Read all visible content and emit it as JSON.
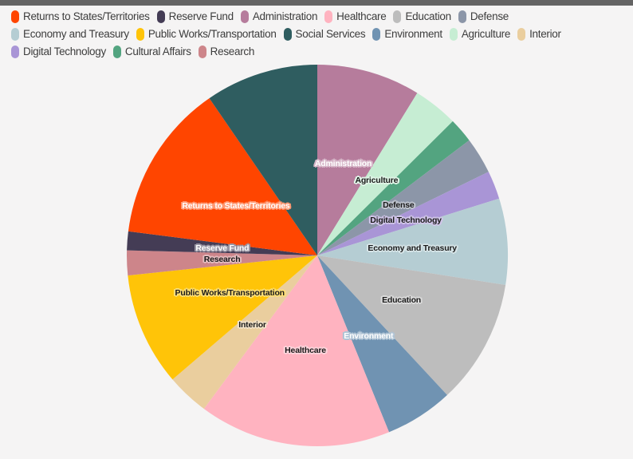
{
  "page": {
    "background": "#f5f4f4",
    "topbar_color": "#646464"
  },
  "chart_data": {
    "type": "pie",
    "title": "",
    "unit": "percent",
    "start_angle": 0,
    "direction": "clockwise",
    "legend_position": "top-left",
    "slices": [
      {
        "label": "Administration",
        "value": 8.8,
        "color": "#b67c9c",
        "pie_label": true,
        "label_color": "#ffffff"
      },
      {
        "label": "Agriculture",
        "value": 3.8,
        "color": "#c6edd3",
        "pie_label": true,
        "label_color": "#1b1b1b"
      },
      {
        "label": "Cultural Affairs",
        "value": 2.1,
        "color": "#53a480",
        "pie_label": false,
        "label_color": "#1b1b1b"
      },
      {
        "label": "Defense",
        "value": 3.1,
        "color": "#8c96a8",
        "pie_label": true,
        "label_color": "#1b1b1b"
      },
      {
        "label": "Digital Technology",
        "value": 2.4,
        "color": "#a995d6",
        "pie_label": true,
        "label_color": "#1b1b1b"
      },
      {
        "label": "Economy and Treasury",
        "value": 7.3,
        "color": "#b5cdd3",
        "pie_label": true,
        "label_color": "#1b1b1b"
      },
      {
        "label": "Education",
        "value": 10.6,
        "color": "#bdbdbd",
        "pie_label": true,
        "label_color": "#1b1b1b"
      },
      {
        "label": "Environment",
        "value": 5.8,
        "color": "#7093b2",
        "pie_label": true,
        "label_color": "#ffffff"
      },
      {
        "label": "Healthcare",
        "value": 16.3,
        "color": "#ffb3c0",
        "pie_label": true,
        "label_color": "#1b1b1b"
      },
      {
        "label": "Interior",
        "value": 3.6,
        "color": "#eace9e",
        "pie_label": true,
        "label_color": "#1b1b1b"
      },
      {
        "label": "Public Works/Transportation",
        "value": 9.6,
        "color": "#ffc408",
        "pie_label": true,
        "label_color": "#1b1b1b"
      },
      {
        "label": "Research",
        "value": 2.1,
        "color": "#cd858a",
        "pie_label": true,
        "label_color": "#1b1b1b"
      },
      {
        "label": "Reserve Fund",
        "value": 1.6,
        "color": "#443c55",
        "pie_label": true,
        "label_color": "#ffffff"
      },
      {
        "label": "Returns to States/Territories",
        "value": 13.4,
        "color": "#ff4500",
        "pie_label": true,
        "label_color": "#ffffff"
      },
      {
        "label": "Social Services",
        "value": 9.6,
        "color": "#2f5d60",
        "pie_label": false,
        "label_color": "#ffffff"
      }
    ],
    "legend_rows": [
      [
        "Returns to States/Territories",
        "Reserve Fund",
        "Administration",
        "Healthcare",
        "Education",
        "Defense"
      ],
      [
        "Economy and Treasury",
        "Public Works/Transportation",
        "Social Services",
        "Environment",
        "Agriculture",
        "Interior"
      ],
      [
        "Digital Technology",
        "Cultural Affairs",
        "Research"
      ]
    ]
  }
}
